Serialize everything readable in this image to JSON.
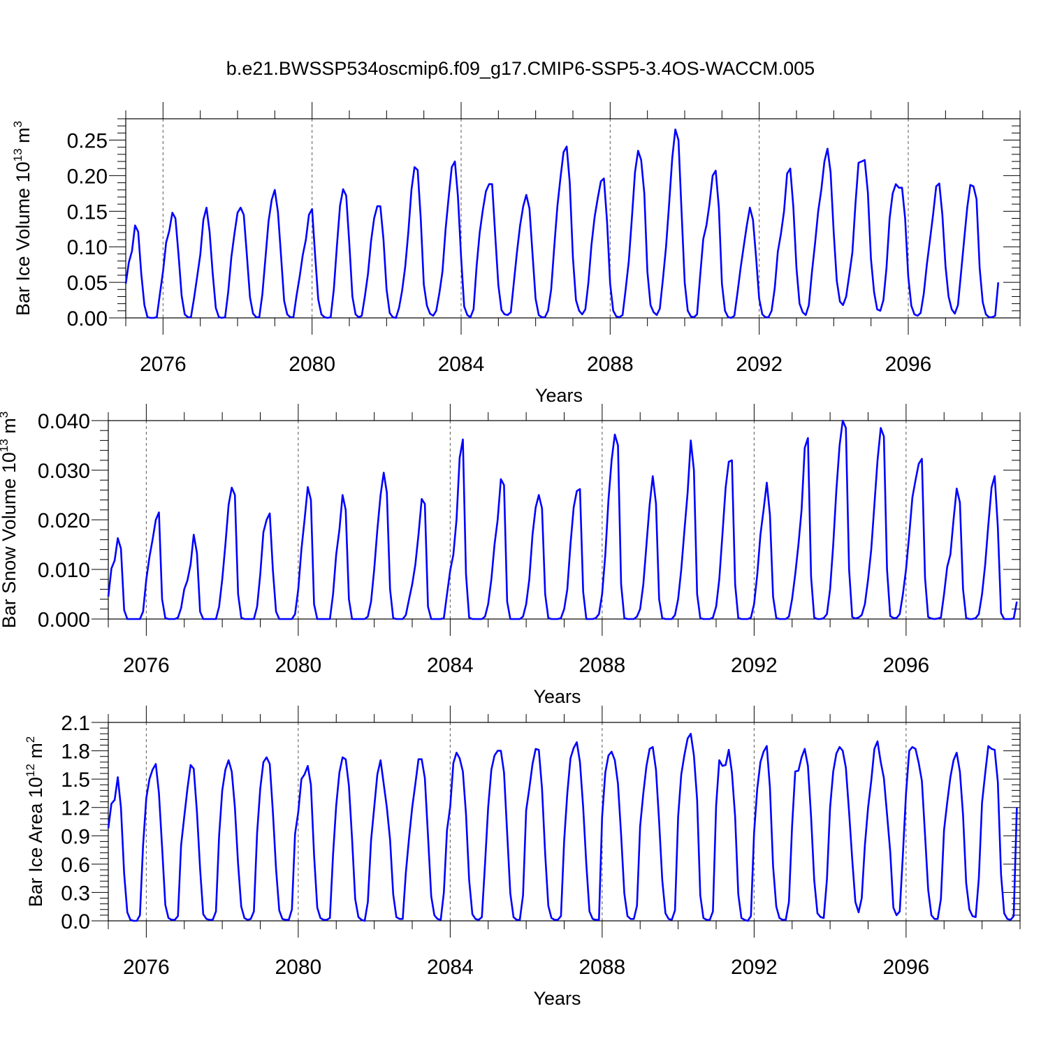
{
  "title": "b.e21.BWSSP534oscmip6.f09_g17.CMIP6-SSP5-3.4OS-WACCM.005",
  "x_axis": {
    "label": "Years",
    "ticks": [
      "2076",
      "2080",
      "2084",
      "2088",
      "2092",
      "2096"
    ]
  },
  "colors": {
    "line": "#0000ff",
    "axis": "#000000"
  },
  "chart_data": [
    {
      "type": "line",
      "ylabel": "Bar Ice Volume 10",
      "ylabel_exp": "13",
      "ylabel_unit": " m",
      "ylabel_unit_exp": "3",
      "xlim": [
        2075.0,
        2099.0
      ],
      "ylim": [
        0.0,
        0.28
      ],
      "ytick_labels": [
        "0.00",
        "0.05",
        "0.10",
        "0.15",
        "0.20",
        "0.25"
      ],
      "xtick_labels": [
        "2076",
        "2080",
        "2084",
        "2088",
        "2092",
        "2096"
      ],
      "xlabel": "Years",
      "x_start": 2075.0,
      "step": 0.08333,
      "series": [
        {
          "values": [
            0.048,
            0.078,
            0.094,
            0.13,
            0.121,
            0.062,
            0.018,
            0.001,
            0.0,
            0.0,
            0.001,
            0.034,
            0.065,
            0.106,
            0.122,
            0.148,
            0.14,
            0.088,
            0.031,
            0.005,
            0.001,
            0.001,
            0.028,
            0.058,
            0.089,
            0.138,
            0.155,
            0.121,
            0.063,
            0.014,
            0.001,
            0.0,
            0.001,
            0.037,
            0.085,
            0.118,
            0.148,
            0.155,
            0.145,
            0.089,
            0.029,
            0.006,
            0.001,
            0.001,
            0.033,
            0.085,
            0.136,
            0.166,
            0.18,
            0.149,
            0.088,
            0.024,
            0.005,
            0.001,
            0.001,
            0.031,
            0.058,
            0.088,
            0.11,
            0.145,
            0.153,
            0.087,
            0.026,
            0.005,
            0.001,
            0.0,
            0.001,
            0.04,
            0.101,
            0.158,
            0.181,
            0.172,
            0.104,
            0.03,
            0.005,
            0.001,
            0.003,
            0.03,
            0.062,
            0.108,
            0.14,
            0.157,
            0.157,
            0.11,
            0.04,
            0.007,
            0.001,
            0.0,
            0.014,
            0.038,
            0.072,
            0.12,
            0.18,
            0.212,
            0.208,
            0.14,
            0.047,
            0.017,
            0.006,
            0.003,
            0.01,
            0.035,
            0.065,
            0.125,
            0.17,
            0.212,
            0.22,
            0.17,
            0.085,
            0.016,
            0.004,
            0.001,
            0.012,
            0.073,
            0.12,
            0.152,
            0.178,
            0.188,
            0.188,
            0.115,
            0.046,
            0.011,
            0.005,
            0.004,
            0.008,
            0.05,
            0.093,
            0.13,
            0.157,
            0.173,
            0.154,
            0.09,
            0.027,
            0.004,
            0.001,
            0.001,
            0.01,
            0.04,
            0.1,
            0.157,
            0.197,
            0.233,
            0.241,
            0.19,
            0.085,
            0.025,
            0.01,
            0.005,
            0.012,
            0.05,
            0.103,
            0.142,
            0.168,
            0.192,
            0.196,
            0.135,
            0.048,
            0.01,
            0.002,
            0.001,
            0.004,
            0.04,
            0.08,
            0.14,
            0.205,
            0.235,
            0.222,
            0.175,
            0.065,
            0.018,
            0.008,
            0.004,
            0.013,
            0.055,
            0.1,
            0.16,
            0.225,
            0.265,
            0.25,
            0.15,
            0.05,
            0.01,
            0.002,
            0.001,
            0.005,
            0.06,
            0.111,
            0.13,
            0.16,
            0.2,
            0.207,
            0.155,
            0.048,
            0.01,
            0.001,
            0.0,
            0.003,
            0.035,
            0.07,
            0.1,
            0.13,
            0.155,
            0.138,
            0.085,
            0.027,
            0.005,
            0.001,
            0.001,
            0.01,
            0.042,
            0.093,
            0.118,
            0.15,
            0.203,
            0.21,
            0.156,
            0.07,
            0.02,
            0.008,
            0.004,
            0.018,
            0.065,
            0.105,
            0.15,
            0.18,
            0.22,
            0.238,
            0.205,
            0.12,
            0.052,
            0.023,
            0.018,
            0.03,
            0.06,
            0.092,
            0.16,
            0.218,
            0.22,
            0.222,
            0.176,
            0.083,
            0.036,
            0.012,
            0.01,
            0.025,
            0.07,
            0.14,
            0.175,
            0.188,
            0.183,
            0.183,
            0.14,
            0.058,
            0.017,
            0.005,
            0.003,
            0.007,
            0.034,
            0.075,
            0.11,
            0.145,
            0.185,
            0.189,
            0.145,
            0.073,
            0.03,
            0.012,
            0.006,
            0.018,
            0.063,
            0.11,
            0.155,
            0.187,
            0.185,
            0.167,
            0.07,
            0.022,
            0.005,
            0.001,
            0.001,
            0.003,
            0.05
          ]
        }
      ]
    },
    {
      "type": "line",
      "ylabel": "Bar Snow Volume 10",
      "ylabel_exp": "13",
      "ylabel_unit": " m",
      "ylabel_unit_exp": "3",
      "xlim": [
        2075.0,
        2099.0
      ],
      "ylim": [
        0.0,
        0.04
      ],
      "ytick_labels": [
        "0.000",
        "0.010",
        "0.020",
        "0.030",
        "0.040"
      ],
      "xtick_labels": [
        "2076",
        "2080",
        "2084",
        "2088",
        "2092",
        "2096"
      ],
      "xlabel": "Years",
      "x_start": 2075.0,
      "step": 0.08333,
      "series": [
        {
          "values": [
            0.0045,
            0.0102,
            0.0118,
            0.0163,
            0.0142,
            0.0018,
            0.0,
            0.0,
            0.0,
            0.0,
            0.0,
            0.0015,
            0.008,
            0.0125,
            0.016,
            0.02,
            0.0215,
            0.004,
            0.0002,
            0.0,
            0.0,
            0.0,
            0.0003,
            0.0022,
            0.006,
            0.0078,
            0.011,
            0.017,
            0.0133,
            0.0015,
            0.0,
            0.0,
            0.0,
            0.0,
            0.0,
            0.0025,
            0.008,
            0.015,
            0.023,
            0.0265,
            0.025,
            0.005,
            0.0003,
            0.0,
            0.0,
            0.0,
            0.0,
            0.0025,
            0.009,
            0.0175,
            0.02,
            0.0213,
            0.0098,
            0.0015,
            0.0,
            0.0,
            0.0,
            0.0,
            0.0,
            0.001,
            0.006,
            0.014,
            0.02,
            0.0266,
            0.024,
            0.003,
            0.0,
            0.0,
            0.0,
            0.0,
            0.0,
            0.005,
            0.013,
            0.018,
            0.025,
            0.022,
            0.004,
            0.0,
            0.0,
            0.0,
            0.0,
            0.0,
            0.0005,
            0.0035,
            0.01,
            0.018,
            0.025,
            0.0295,
            0.0255,
            0.006,
            0.0002,
            0.0,
            0.0,
            0.0,
            0.0008,
            0.004,
            0.007,
            0.011,
            0.017,
            0.0242,
            0.0232,
            0.0025,
            0.0,
            0.0,
            0.0,
            0.0,
            0.0002,
            0.005,
            0.0098,
            0.013,
            0.02,
            0.0325,
            0.0362,
            0.009,
            0.0003,
            0.0,
            0.0,
            0.0,
            0.0,
            0.0005,
            0.003,
            0.008,
            0.015,
            0.02,
            0.0282,
            0.027,
            0.0035,
            0.0,
            0.0,
            0.0,
            0.0,
            0.0005,
            0.003,
            0.008,
            0.017,
            0.0225,
            0.025,
            0.0223,
            0.005,
            0.0002,
            0.0,
            0.0,
            0.0,
            0.0002,
            0.002,
            0.006,
            0.015,
            0.0225,
            0.0258,
            0.0262,
            0.0055,
            0.0,
            0.0,
            0.0,
            0.0002,
            0.001,
            0.005,
            0.013,
            0.024,
            0.032,
            0.0372,
            0.035,
            0.007,
            0.0002,
            0.0,
            0.0,
            0.0,
            0.0005,
            0.002,
            0.007,
            0.015,
            0.023,
            0.0288,
            0.0233,
            0.004,
            0.0002,
            0.0,
            0.0,
            0.0,
            0.0008,
            0.004,
            0.01,
            0.018,
            0.0255,
            0.036,
            0.03,
            0.005,
            0.0002,
            0.0,
            0.0,
            0.0,
            0.0003,
            0.0025,
            0.008,
            0.017,
            0.0265,
            0.0317,
            0.032,
            0.007,
            0.0002,
            0.0,
            0.0,
            0.0,
            0.0003,
            0.003,
            0.009,
            0.017,
            0.022,
            0.0275,
            0.021,
            0.0045,
            0.0002,
            0.0,
            0.0,
            0.0,
            0.0005,
            0.004,
            0.009,
            0.015,
            0.022,
            0.0345,
            0.0365,
            0.0085,
            0.0003,
            0.0,
            0.0,
            0.0002,
            0.001,
            0.006,
            0.015,
            0.026,
            0.035,
            0.04,
            0.0385,
            0.01,
            0.0004,
            0.0001,
            0.0003,
            0.0008,
            0.003,
            0.008,
            0.014,
            0.023,
            0.032,
            0.0385,
            0.0368,
            0.01,
            0.0006,
            0.0002,
            0.0002,
            0.001,
            0.005,
            0.01,
            0.017,
            0.0245,
            0.028,
            0.0313,
            0.0323,
            0.0083,
            0.0004,
            0.0001,
            0.0,
            0.0001,
            0.0003,
            0.005,
            0.0105,
            0.013,
            0.02,
            0.0263,
            0.0235,
            0.006,
            0.0002,
            0.0,
            0.0,
            0.0002,
            0.001,
            0.005,
            0.011,
            0.019,
            0.0265,
            0.0288,
            0.0185,
            0.0012,
            0.0,
            0.0,
            0.0,
            0.0001,
            0.0035
          ]
        }
      ]
    },
    {
      "type": "line",
      "ylabel": "Bar Ice Area 10",
      "ylabel_exp": "12",
      "ylabel_unit": " m",
      "ylabel_unit_exp": "2",
      "xlim": [
        2075.0,
        2099.0
      ],
      "ylim": [
        0.0,
        2.1
      ],
      "ytick_labels": [
        "0.0",
        "0.3",
        "0.6",
        "0.9",
        "1.2",
        "1.5",
        "1.8",
        "2.1"
      ],
      "xtick_labels": [
        "2076",
        "2080",
        "2084",
        "2088",
        "2092",
        "2096"
      ],
      "xlabel": "Years",
      "x_start": 2075.0,
      "step": 0.08333,
      "series": [
        {
          "values": [
            0.98,
            1.24,
            1.28,
            1.52,
            1.2,
            0.5,
            0.09,
            0.01,
            0.0,
            0.0,
            0.06,
            0.8,
            1.3,
            1.5,
            1.6,
            1.66,
            1.35,
            0.78,
            0.17,
            0.03,
            0.01,
            0.01,
            0.05,
            0.8,
            1.1,
            1.4,
            1.65,
            1.61,
            1.15,
            0.55,
            0.07,
            0.02,
            0.01,
            0.01,
            0.1,
            0.9,
            1.38,
            1.6,
            1.7,
            1.58,
            1.2,
            0.6,
            0.15,
            0.03,
            0.01,
            0.02,
            0.1,
            0.93,
            1.4,
            1.68,
            1.73,
            1.66,
            1.15,
            0.55,
            0.11,
            0.02,
            0.01,
            0.01,
            0.12,
            0.92,
            1.15,
            1.5,
            1.55,
            1.64,
            1.44,
            0.7,
            0.14,
            0.03,
            0.01,
            0.01,
            0.03,
            0.7,
            1.22,
            1.57,
            1.73,
            1.71,
            1.43,
            0.87,
            0.23,
            0.04,
            0.01,
            0.0,
            0.2,
            0.85,
            1.2,
            1.55,
            1.7,
            1.45,
            1.2,
            0.86,
            0.28,
            0.04,
            0.02,
            0.02,
            0.51,
            0.88,
            1.2,
            1.45,
            1.71,
            1.71,
            1.51,
            0.9,
            0.26,
            0.06,
            0.02,
            0.01,
            0.3,
            0.96,
            1.21,
            1.67,
            1.78,
            1.72,
            1.58,
            1.13,
            0.43,
            0.07,
            0.02,
            0.01,
            0.04,
            0.6,
            1.2,
            1.6,
            1.75,
            1.8,
            1.8,
            1.57,
            0.93,
            0.29,
            0.04,
            0.01,
            0.01,
            0.27,
            1.17,
            1.4,
            1.66,
            1.82,
            1.81,
            1.4,
            0.71,
            0.16,
            0.03,
            0.01,
            0.01,
            0.05,
            0.85,
            1.35,
            1.72,
            1.83,
            1.89,
            1.68,
            1.2,
            0.6,
            0.1,
            0.02,
            0.01,
            0.01,
            1.1,
            1.57,
            1.75,
            1.79,
            1.7,
            1.45,
            0.91,
            0.29,
            0.05,
            0.02,
            0.02,
            0.16,
            1.0,
            1.35,
            1.64,
            1.82,
            1.84,
            1.6,
            1.05,
            0.43,
            0.08,
            0.02,
            0.01,
            0.11,
            1.1,
            1.55,
            1.76,
            1.93,
            1.98,
            1.75,
            1.28,
            0.27,
            0.03,
            0.01,
            0.01,
            0.1,
            1.22,
            1.7,
            1.64,
            1.65,
            1.81,
            1.57,
            1.1,
            0.28,
            0.03,
            0.01,
            0.0,
            0.05,
            0.93,
            1.4,
            1.68,
            1.79,
            1.85,
            1.41,
            0.58,
            0.15,
            0.03,
            0.01,
            0.01,
            0.2,
            1.0,
            1.58,
            1.59,
            1.73,
            1.82,
            1.64,
            1.1,
            0.43,
            0.08,
            0.04,
            0.03,
            0.44,
            1.2,
            1.58,
            1.77,
            1.84,
            1.8,
            1.62,
            1.15,
            0.65,
            0.2,
            0.09,
            0.24,
            0.8,
            1.2,
            1.48,
            1.82,
            1.9,
            1.68,
            1.51,
            1.13,
            0.73,
            0.14,
            0.06,
            0.1,
            0.7,
            1.35,
            1.8,
            1.84,
            1.82,
            1.67,
            1.48,
            0.91,
            0.33,
            0.06,
            0.02,
            0.02,
            0.23,
            0.96,
            1.25,
            1.52,
            1.7,
            1.78,
            1.58,
            1.12,
            0.4,
            0.12,
            0.05,
            0.04,
            0.45,
            1.25,
            1.56,
            1.85,
            1.82,
            1.81,
            1.47,
            0.49,
            0.08,
            0.02,
            0.01,
            0.05,
            1.2
          ]
        }
      ]
    }
  ]
}
